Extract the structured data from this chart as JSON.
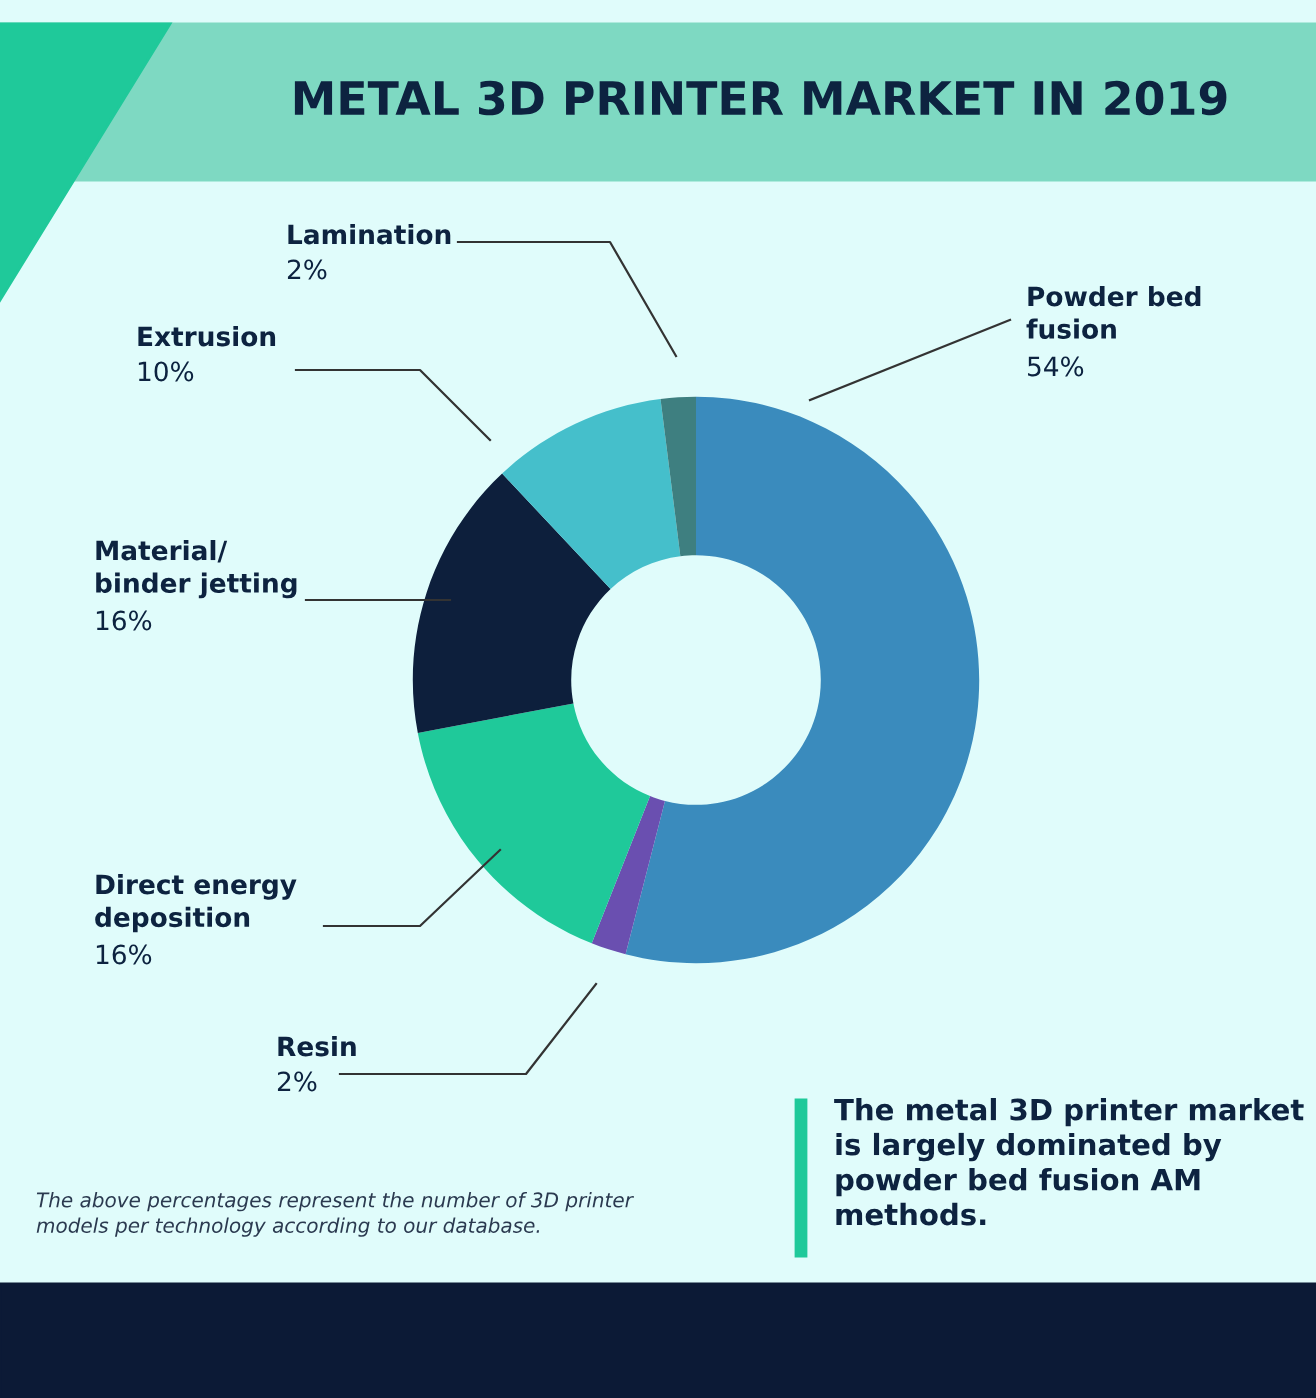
{
  "chart_data": {
    "type": "donut",
    "title": "METAL 3D PRINTER MARKET IN 2019",
    "categories": [
      "Powder bed\nfusion",
      "Resin",
      "Direct energy\ndeposition",
      "Material/\nbinder jetting",
      "Extrusion",
      "Lamination"
    ],
    "values": [
      54,
      2,
      16,
      16,
      10,
      2
    ],
    "colors": [
      "#3a8bbd",
      "#6a4fb0",
      "#1fc99a",
      "#0d1f3c",
      "#45bfcb",
      "#3e7f80"
    ],
    "value_labels": [
      "54%",
      "2%",
      "16%",
      "16%",
      "10%",
      "2%"
    ],
    "annotations": [
      "The above percentages represent the number of 3D printer\nmodels per technology according to our database.",
      "The metal 3D printer market\nis largely dominated by\npowder bed fusion AM\nmethods."
    ]
  }
}
